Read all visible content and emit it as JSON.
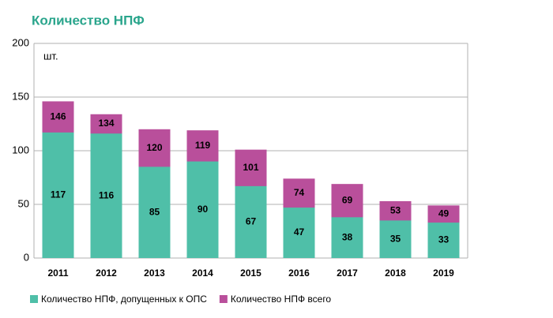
{
  "chart_data": {
    "type": "bar",
    "title": "Количество НПФ",
    "y_label": "шт.",
    "categories": [
      "2011",
      "2012",
      "2013",
      "2014",
      "2015",
      "2016",
      "2017",
      "2018",
      "2019"
    ],
    "series": [
      {
        "name": "Количество НПФ, допущенных к ОПС",
        "color": "#4fbfa8",
        "values": [
          117,
          116,
          85,
          90,
          67,
          47,
          38,
          35,
          33
        ]
      },
      {
        "name": "Количество НПФ всего",
        "color": "#b94f9b",
        "values": [
          146,
          134,
          120,
          119,
          101,
          74,
          69,
          53,
          49
        ]
      }
    ],
    "ylim": [
      0,
      200
    ],
    "yticks": [
      0,
      50,
      100,
      150,
      200
    ],
    "grid": true,
    "legend": "bottom"
  }
}
